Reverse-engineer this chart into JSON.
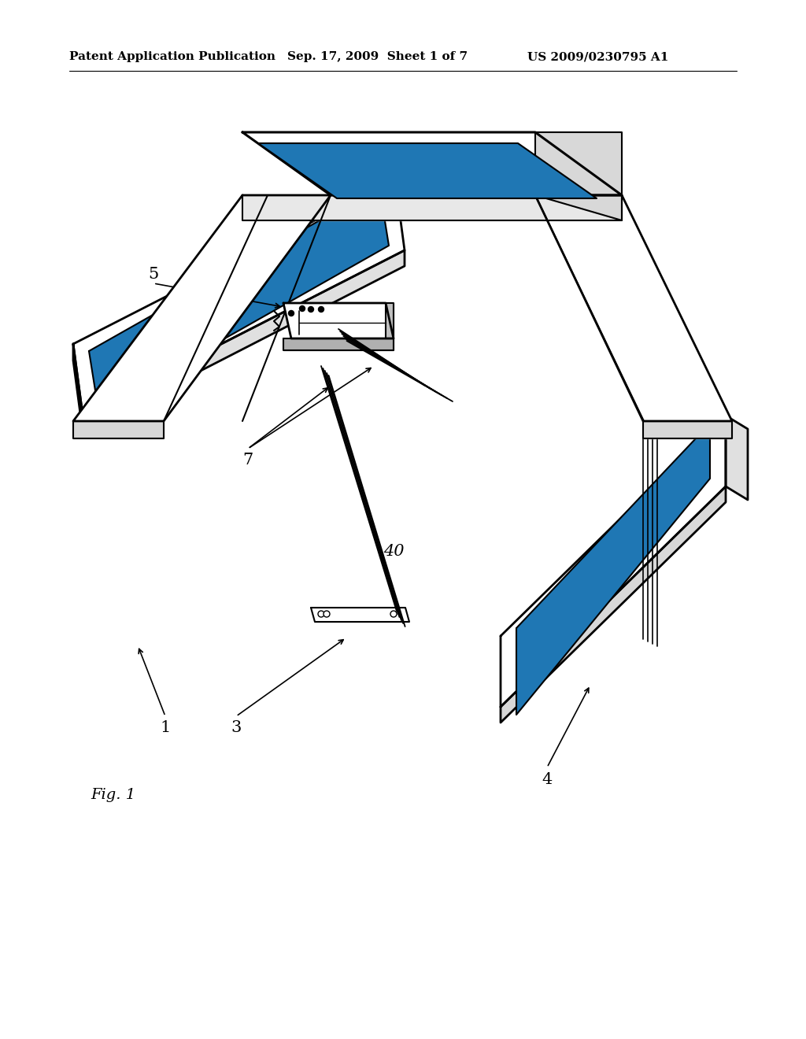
{
  "bg_color": "#ffffff",
  "header_left": "Patent Application Publication",
  "header_mid": "Sep. 17, 2009  Sheet 1 of 7",
  "header_right": "US 2009/0230795 A1",
  "line_color": "#000000",
  "fig_label": "Fig. 1"
}
